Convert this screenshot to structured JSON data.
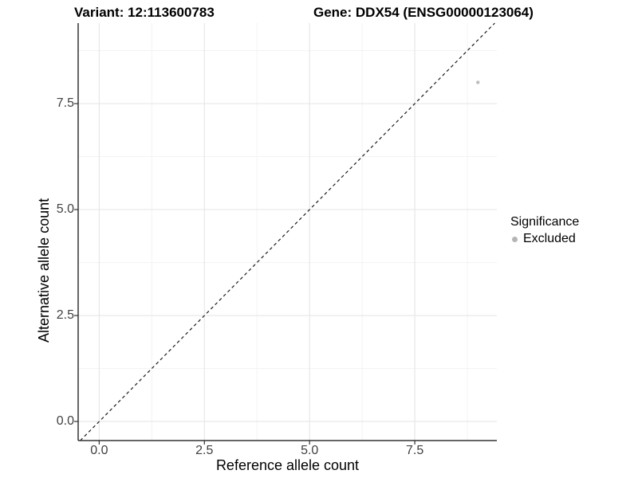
{
  "chart_data": {
    "type": "scatter",
    "title_left": "Variant: 12:113600783",
    "title_right": "Gene: DDX54 (ENSG00000123064)",
    "xlabel": "Reference allele count",
    "ylabel": "Alternative allele count",
    "xlim": [
      -0.5,
      9.45
    ],
    "ylim": [
      -0.45,
      9.4
    ],
    "xticks": {
      "values": [
        0,
        2.5,
        5,
        7.5
      ],
      "labels": [
        "0.0",
        "2.5",
        "5.0",
        "7.5"
      ]
    },
    "yticks": {
      "values": [
        0,
        2.5,
        5,
        7.5
      ],
      "labels": [
        "0.0",
        "2.5",
        "5.0",
        "7.5"
      ]
    },
    "xminor": [
      1.25,
      3.75,
      6.25,
      8.75
    ],
    "yminor": [
      1.25,
      3.75,
      6.25,
      8.75
    ],
    "grid": {
      "major": true,
      "minor": true,
      "major_color": "#e7e7e7",
      "minor_color": "#f3f3f3"
    },
    "series": [
      {
        "name": "Excluded",
        "color": "#bdbdbd",
        "points": [
          {
            "x": 9,
            "y": 8
          }
        ]
      }
    ],
    "reference_line": {
      "kind": "identity",
      "equation": "y = x",
      "style": "dashed",
      "color": "#1a1a1a"
    },
    "legend": {
      "position": "right",
      "title": "Significance",
      "entries": [
        {
          "label": "Excluded",
          "color": "#b5b5b5"
        }
      ]
    },
    "axis": {
      "spine_color": "#333333",
      "tick_color": "#333333",
      "tick_label_color": "#404040"
    }
  }
}
